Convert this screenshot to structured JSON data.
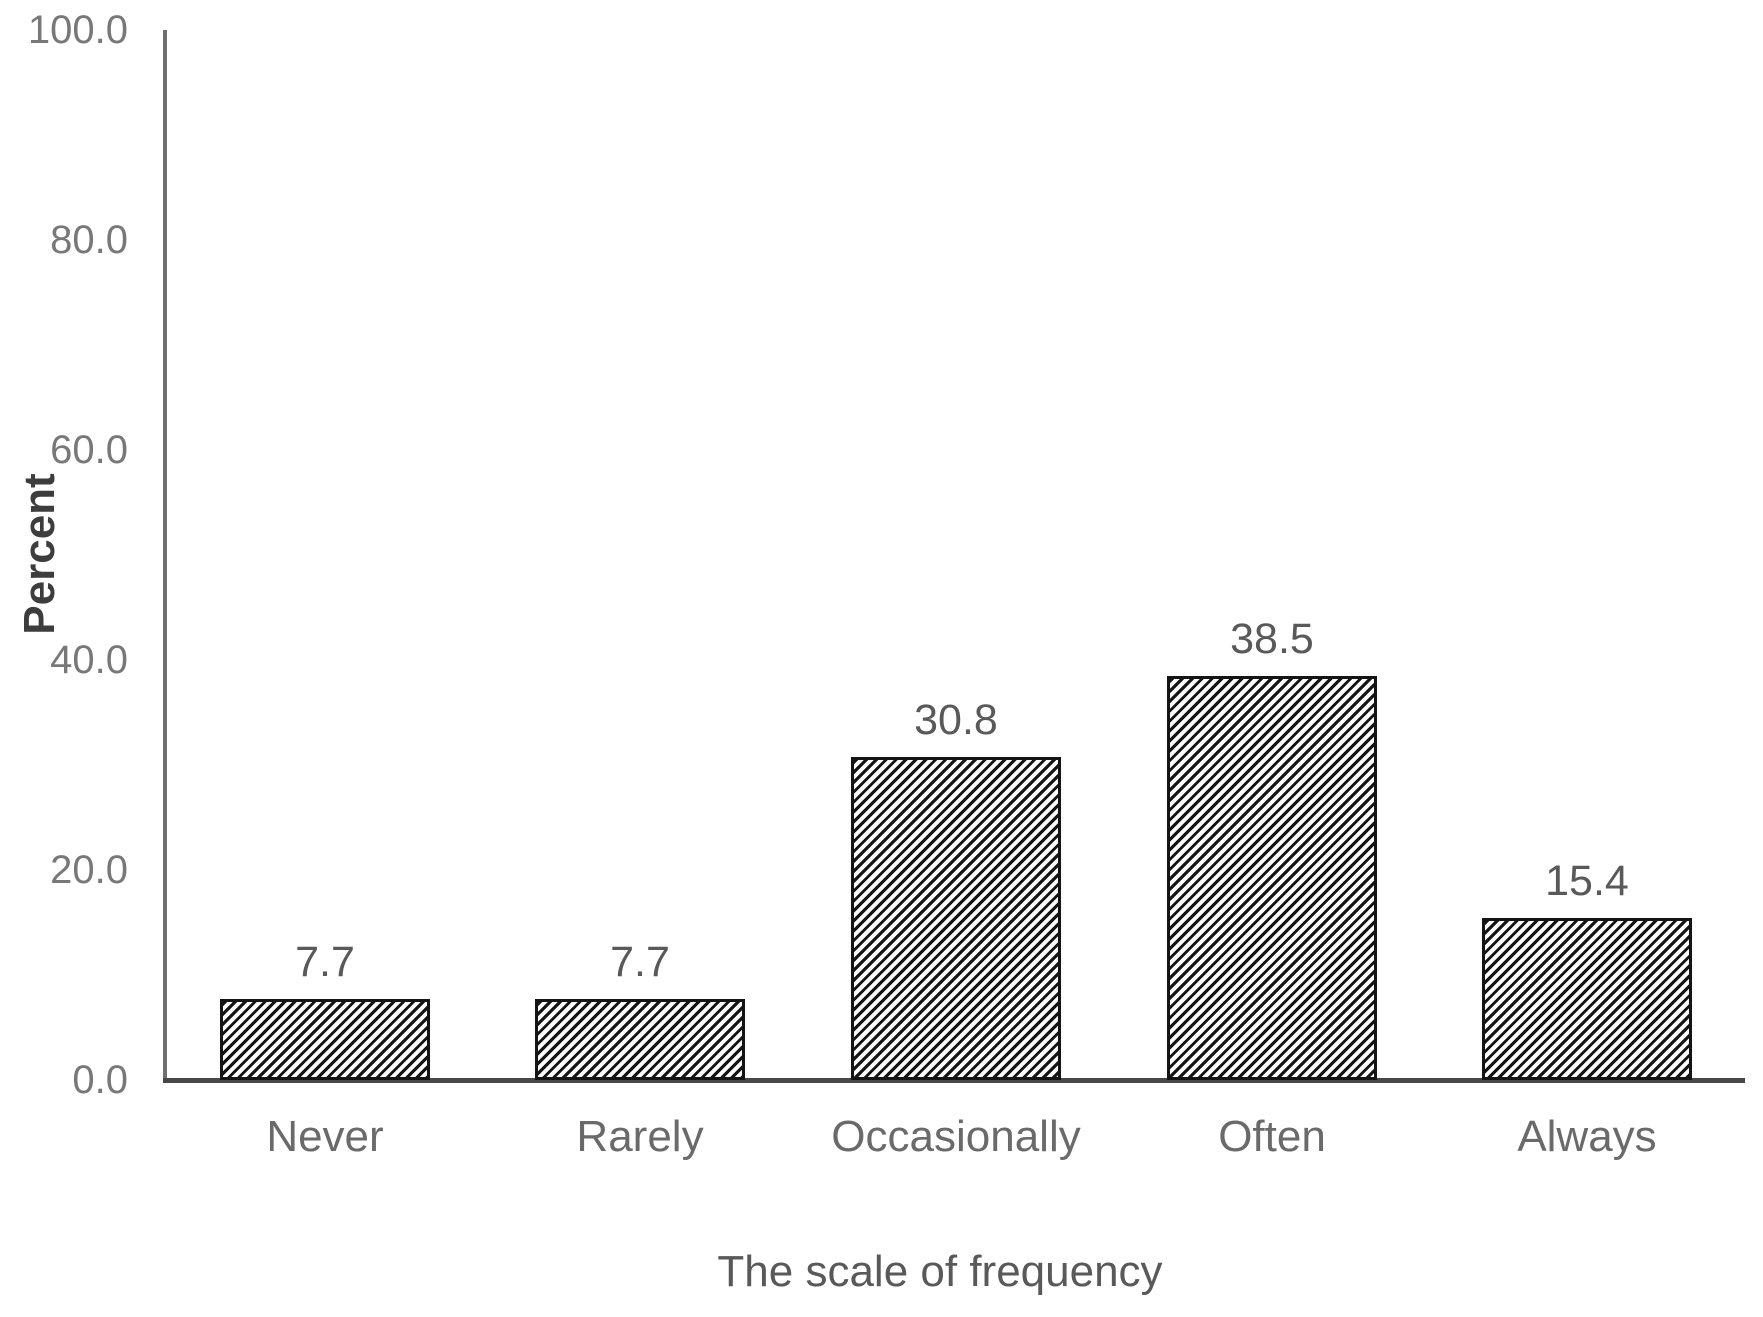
{
  "chart_data": {
    "type": "bar",
    "title": "",
    "categories": [
      "Never",
      "Rarely",
      "Occasionally",
      "Often",
      "Always"
    ],
    "values": [
      7.7,
      7.7,
      30.8,
      38.5,
      15.4
    ],
    "data_labels": [
      "7.7",
      "7.7",
      "30.8",
      "38.5",
      "15.4"
    ],
    "xlabel": "The scale of frequency",
    "ylabel": "Percent",
    "ylim": [
      0,
      100
    ],
    "ytick_labels": [
      "0.0",
      "20.0",
      "40.0",
      "60.0",
      "80.0",
      "100.0"
    ],
    "ytick_values": [
      0,
      20,
      40,
      60,
      80,
      100
    ],
    "grid": "off",
    "legend": "none",
    "bar_fill": "diagonal-hatch",
    "colors": {
      "background": "#ffffff",
      "bar_hatch": "#141414",
      "bar_outline": "#141414",
      "y_axis_line": "#6f6f6f",
      "x_axis_line": "#474747",
      "tick_label": "#787878",
      "category_label": "#6a6a6a",
      "value_label": "#595959",
      "y_title": "#3d3d3d",
      "x_title": "#595959"
    }
  }
}
